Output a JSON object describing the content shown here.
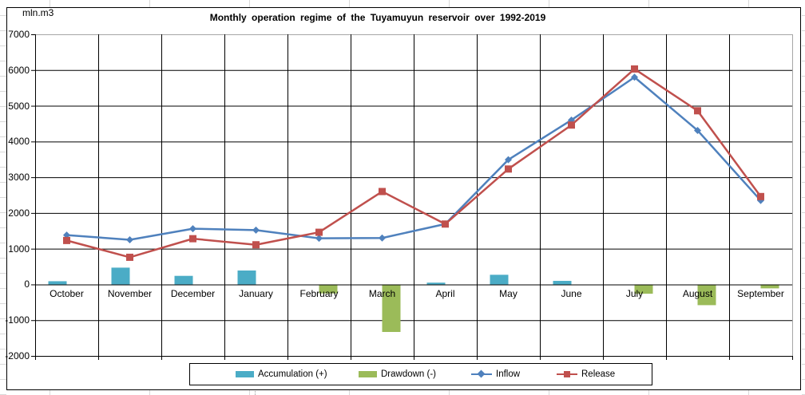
{
  "chart_data": {
    "type": "combo-bar-line",
    "title": "Monthly operation regime of the Tuyamuyun  reservoir over 1992-2019",
    "unit_label": "mln.m3",
    "categories": [
      "October",
      "November",
      "December",
      "January",
      "February",
      "March",
      "April",
      "May",
      "June",
      "July",
      "August",
      "September"
    ],
    "series": [
      {
        "name": "Accumulation (+)",
        "type": "bar",
        "slot": 0,
        "color": "#4BACC6",
        "values": [
          90,
          470,
          240,
          390,
          null,
          null,
          50,
          270,
          100,
          null,
          null,
          null
        ]
      },
      {
        "name": "Drawdown (-)",
        "type": "bar",
        "slot": 1,
        "color": "#9BBB59",
        "values": [
          null,
          null,
          null,
          null,
          -250,
          -1330,
          null,
          null,
          null,
          -260,
          -580,
          -110
        ]
      },
      {
        "name": "Inflow",
        "type": "line",
        "marker": "diamond",
        "color": "#4F81BD",
        "values": [
          1380,
          1250,
          1560,
          1520,
          1290,
          1300,
          1690,
          3490,
          4600,
          5800,
          4310,
          2350
        ]
      },
      {
        "name": "Release",
        "type": "line",
        "marker": "square",
        "color": "#C0504D",
        "values": [
          1230,
          760,
          1280,
          1110,
          1460,
          2600,
          1690,
          3230,
          4460,
          6030,
          4860,
          2460
        ]
      }
    ],
    "y_axis": {
      "min": -2000,
      "max": 7000,
      "step": 1000,
      "ticks": [
        7000,
        6000,
        5000,
        4000,
        3000,
        2000,
        1000,
        0,
        -1000,
        -2000
      ]
    },
    "xlabel": "",
    "ylabel": "mln.m3",
    "grid": true,
    "legend_position": "bottom",
    "colors": {
      "grid": "#000000",
      "plot_edge": "#a6a6a6",
      "text": "#000000",
      "sheet_line": "#d9d9d9"
    }
  }
}
